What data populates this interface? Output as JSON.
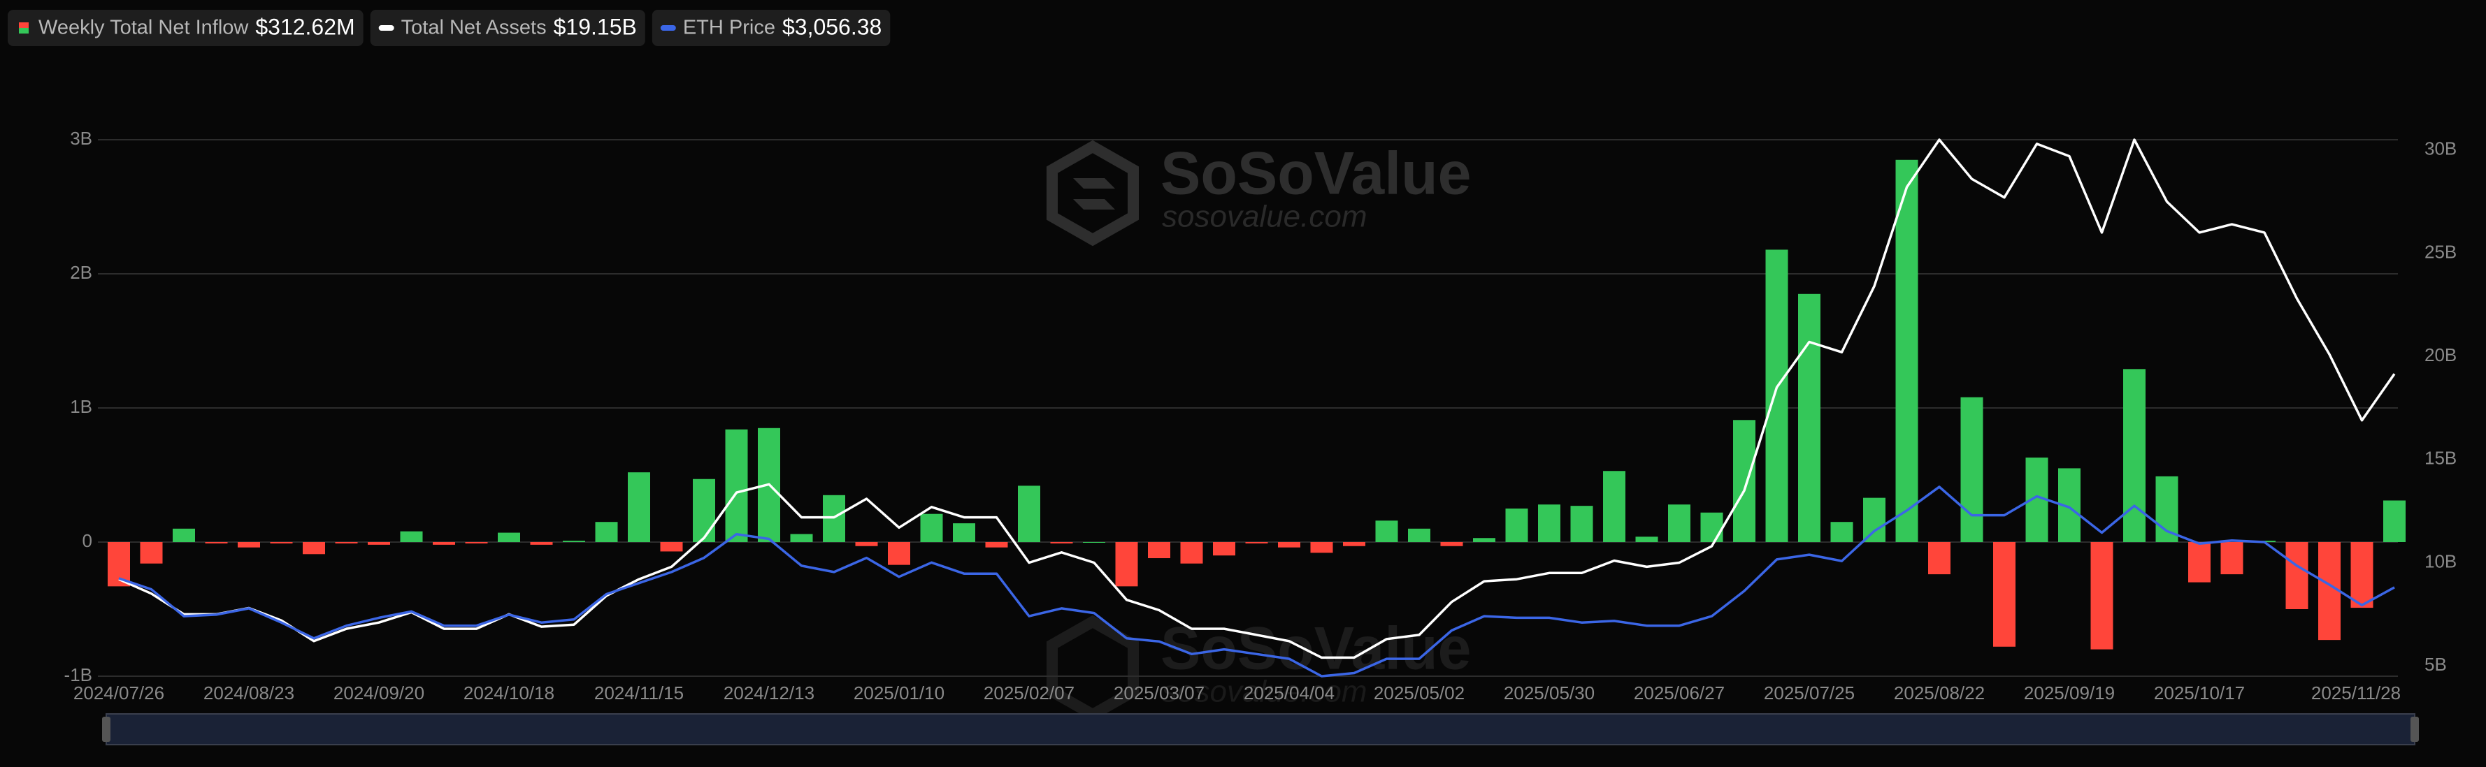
{
  "chart_data": {
    "type": "combo",
    "watermark": {
      "brand": "SoSoValue",
      "site": "sosovalue.com"
    },
    "categories": [
      "2024/07/26",
      null,
      null,
      null,
      "2024/08/23",
      null,
      null,
      null,
      "2024/09/20",
      null,
      null,
      null,
      "2024/10/18",
      null,
      null,
      null,
      "2024/11/15",
      null,
      null,
      null,
      "2024/12/13",
      null,
      null,
      null,
      "2025/01/10",
      null,
      null,
      null,
      "2025/02/07",
      null,
      null,
      null,
      "2025/03/07",
      null,
      null,
      null,
      "2025/04/04",
      null,
      null,
      null,
      "2025/05/02",
      null,
      null,
      null,
      "2025/05/30",
      null,
      null,
      null,
      "2025/06/27",
      null,
      null,
      null,
      "2025/07/25",
      null,
      null,
      null,
      "2025/08/22",
      null,
      null,
      null,
      "2025/09/19",
      null,
      null,
      null,
      "2025/10/17",
      null,
      null,
      null,
      null,
      null,
      "2025/11/28"
    ],
    "series": [
      {
        "name": "Weekly Total Net Inflow",
        "type": "bar",
        "legend_value": "$312.62M",
        "color": "#34c759",
        "negative_color": "#ff453a",
        "values": [
          -0.33,
          -0.16,
          0.1,
          -0.01,
          -0.04,
          -0.01,
          -0.09,
          -0.01,
          -0.02,
          0.08,
          -0.02,
          -0.01,
          0.07,
          -0.02,
          0.01,
          0.15,
          0.52,
          -0.07,
          0.47,
          0.84,
          0.85,
          0.06,
          0.35,
          -0.03,
          -0.17,
          0.21,
          0.14,
          -0.04,
          0.42,
          -0.01,
          0.0,
          -0.33,
          -0.12,
          -0.16,
          -0.1,
          -0.01,
          -0.04,
          -0.08,
          -0.03,
          0.16,
          0.1,
          -0.03,
          0.03,
          0.25,
          0.28,
          0.27,
          0.53,
          0.04,
          0.28,
          0.22,
          0.91,
          2.18,
          1.85,
          0.15,
          0.33,
          2.85,
          -0.24,
          1.08,
          -0.78,
          0.63,
          0.55,
          -0.8,
          1.29,
          0.49,
          -0.3,
          -0.24,
          0.01,
          -0.5,
          -0.73,
          -0.49,
          0.31
        ]
      },
      {
        "name": "Total Net Assets",
        "type": "line",
        "axis": "y2",
        "legend_value": "$19.15B",
        "color": "#ffffff",
        "values": [
          9.2,
          8.5,
          7.5,
          7.5,
          7.8,
          7.2,
          6.2,
          6.8,
          7.1,
          7.6,
          6.8,
          6.8,
          7.5,
          6.9,
          7.0,
          8.4,
          9.2,
          9.8,
          11.2,
          13.4,
          13.8,
          12.2,
          12.2,
          13.1,
          11.7,
          12.7,
          12.2,
          12.2,
          10.0,
          10.5,
          10.0,
          8.2,
          7.7,
          6.8,
          6.8,
          6.5,
          6.2,
          5.4,
          5.4,
          6.3,
          6.5,
          8.1,
          9.1,
          9.2,
          9.5,
          9.5,
          10.1,
          9.8,
          10.0,
          10.8,
          13.5,
          18.5,
          20.7,
          20.2,
          23.4,
          28.2,
          30.5,
          28.6,
          27.7,
          30.3,
          29.7,
          26.0,
          30.5,
          27.5,
          26.0,
          26.4,
          26.0,
          22.8,
          20.1,
          16.9,
          19.15
        ]
      },
      {
        "name": "ETH Price",
        "type": "line",
        "axis": "y3",
        "legend_value": "$3,056.38",
        "color": "#3b66e6",
        "values": [
          3205,
          3024,
          2584,
          2610,
          2713,
          2480,
          2221,
          2428,
          2558,
          2661,
          2428,
          2428,
          2610,
          2480,
          2532,
          2946,
          3127,
          3308,
          3541,
          3929,
          3852,
          3412,
          3308,
          3541,
          3231,
          3464,
          3282,
          3282,
          2584,
          2713,
          2636,
          2221,
          2170,
          1963,
          2040,
          1963,
          1885,
          1600,
          1652,
          1885,
          1885,
          2351,
          2584,
          2558,
          2558,
          2480,
          2506,
          2428,
          2428,
          2584,
          2998,
          3515,
          3593,
          3489,
          3981,
          4318,
          4706,
          4240,
          4240,
          4551,
          4369,
          3955,
          4395,
          3981,
          3774,
          3826,
          3800,
          3412,
          3101,
          2765,
          3056.38
        ]
      }
    ],
    "ylim": [
      -1,
      3
    ],
    "yticks": [
      {
        "value": -1,
        "label": "-1B"
      },
      0,
      {
        "value": 1,
        "label": "1B"
      },
      {
        "value": 2,
        "label": "2B"
      },
      {
        "value": 3,
        "label": "3B"
      }
    ],
    "y2lim": [
      4.5,
      30.5
    ],
    "y2ticks": [
      {
        "value": 5,
        "label": "5B"
      },
      {
        "value": 10,
        "label": "10B"
      },
      {
        "value": 15,
        "label": "15B"
      },
      {
        "value": 20,
        "label": "20B"
      },
      {
        "value": 25,
        "label": "25B"
      },
      {
        "value": 30,
        "label": "30B"
      }
    ],
    "y3lim": [
      1600,
      10400
    ],
    "grid": true
  }
}
